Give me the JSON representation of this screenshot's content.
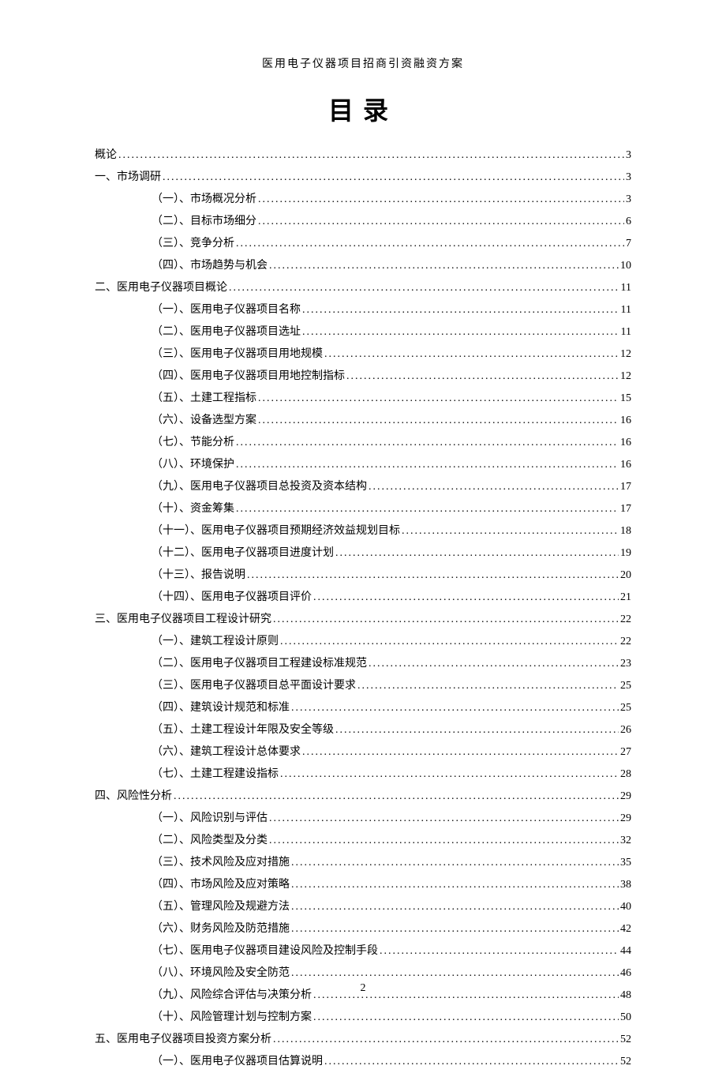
{
  "header_subtitle": "医用电子仪器项目招商引资融资方案",
  "main_title": "目录",
  "page_number": "2",
  "dots_text": "...................................................................................................................................................................",
  "colors": {
    "background": "#ffffff",
    "text": "#000000"
  },
  "typography": {
    "body_fontsize": 14,
    "title_fontsize": 32,
    "line_height": 2.0
  },
  "toc_entries": [
    {
      "level": 0,
      "label": "概论",
      "page": "3"
    },
    {
      "level": 1,
      "label": "一、市场调研",
      "page": "3"
    },
    {
      "level": 2,
      "label": "（一）、市场概况分析",
      "page": "3"
    },
    {
      "level": 2,
      "label": "（二）、目标市场细分",
      "page": "6"
    },
    {
      "level": 2,
      "label": "（三）、竞争分析",
      "page": "7"
    },
    {
      "level": 2,
      "label": "（四）、市场趋势与机会",
      "page": "10"
    },
    {
      "level": 1,
      "label": "二、医用电子仪器项目概论",
      "page": "11"
    },
    {
      "level": 2,
      "label": "（一）、医用电子仪器项目名称",
      "page": "11"
    },
    {
      "level": 2,
      "label": "（二）、医用电子仪器项目选址",
      "page": "11"
    },
    {
      "level": 2,
      "label": "（三）、医用电子仪器项目用地规模",
      "page": "12"
    },
    {
      "level": 2,
      "label": "（四）、医用电子仪器项目用地控制指标",
      "page": "12"
    },
    {
      "level": 2,
      "label": "（五）、土建工程指标",
      "page": "15"
    },
    {
      "level": 2,
      "label": "（六）、设备选型方案",
      "page": "16"
    },
    {
      "level": 2,
      "label": "（七）、节能分析",
      "page": "16"
    },
    {
      "level": 2,
      "label": "（八）、环境保护",
      "page": "16"
    },
    {
      "level": 2,
      "label": "（九）、医用电子仪器项目总投资及资本结构",
      "page": "17"
    },
    {
      "level": 2,
      "label": "（十）、资金筹集",
      "page": "17"
    },
    {
      "level": 2,
      "label": "（十一）、医用电子仪器项目预期经济效益规划目标",
      "page": "18"
    },
    {
      "level": 2,
      "label": "（十二）、医用电子仪器项目进度计划",
      "page": "19"
    },
    {
      "level": 2,
      "label": "（十三）、报告说明",
      "page": "20"
    },
    {
      "level": 2,
      "label": "（十四）、医用电子仪器项目评价",
      "page": "21"
    },
    {
      "level": 1,
      "label": "三、医用电子仪器项目工程设计研究",
      "page": "22"
    },
    {
      "level": 2,
      "label": "（一）、建筑工程设计原则",
      "page": "22"
    },
    {
      "level": 2,
      "label": "（二）、医用电子仪器项目工程建设标准规范",
      "page": "23"
    },
    {
      "level": 2,
      "label": "（三）、医用电子仪器项目总平面设计要求",
      "page": "25"
    },
    {
      "level": 2,
      "label": "（四）、建筑设计规范和标准",
      "page": "25"
    },
    {
      "level": 2,
      "label": "（五）、土建工程设计年限及安全等级",
      "page": "26"
    },
    {
      "level": 2,
      "label": "（六）、建筑工程设计总体要求",
      "page": "27"
    },
    {
      "level": 2,
      "label": "（七）、土建工程建设指标",
      "page": "28"
    },
    {
      "level": 1,
      "label": "四、风险性分析",
      "page": "29"
    },
    {
      "level": 2,
      "label": "（一）、风险识别与评估",
      "page": "29"
    },
    {
      "level": 2,
      "label": "（二）、风险类型及分类",
      "page": "32"
    },
    {
      "level": 2,
      "label": "（三）、技术风险及应对措施",
      "page": "35"
    },
    {
      "level": 2,
      "label": "（四）、市场风险及应对策略",
      "page": "38"
    },
    {
      "level": 2,
      "label": "（五）、管理风险及规避方法",
      "page": "40"
    },
    {
      "level": 2,
      "label": "（六）、财务风险及防范措施",
      "page": "42"
    },
    {
      "level": 2,
      "label": "（七）、医用电子仪器项目建设风险及控制手段",
      "page": "44"
    },
    {
      "level": 2,
      "label": "（八）、环境风险及安全防范",
      "page": "46"
    },
    {
      "level": 2,
      "label": "（九）、风险综合评估与决策分析",
      "page": "48"
    },
    {
      "level": 2,
      "label": "（十）、风险管理计划与控制方案",
      "page": "50"
    },
    {
      "level": 1,
      "label": "五、医用电子仪器项目投资方案分析",
      "page": "52"
    },
    {
      "level": 2,
      "label": "（一）、医用电子仪器项目估算说明",
      "page": "52"
    }
  ]
}
